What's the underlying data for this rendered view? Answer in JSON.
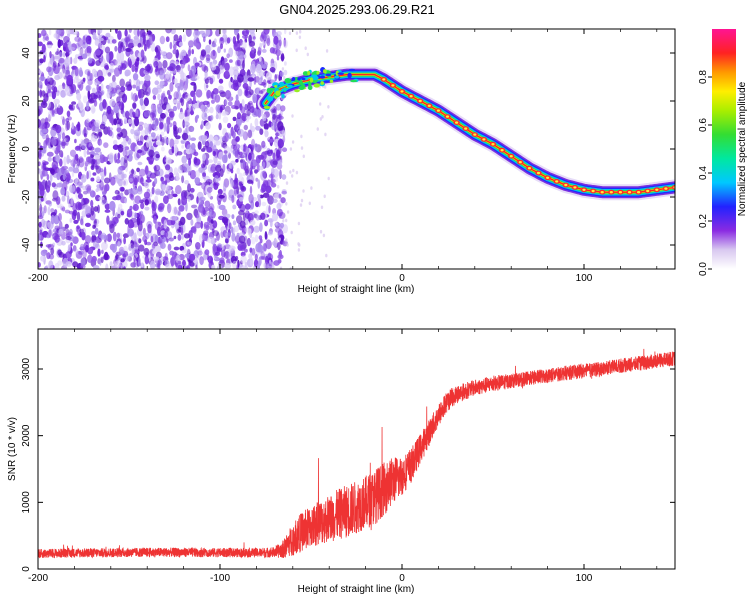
{
  "title": "GN04.2025.293.06.29.R21",
  "chart_data": [
    {
      "type": "heatmap",
      "xlabel": "Height of straight line (km)",
      "ylabel": "Frequency (Hz)",
      "xlim": [
        -200,
        150
      ],
      "ylim": [
        -50,
        50
      ],
      "x_ticks": [
        -200,
        -100,
        0,
        100
      ],
      "y_ticks": [
        -40,
        -20,
        0,
        20,
        40
      ],
      "colorbar": {
        "label": "Normalized spectral amplitude",
        "range": [
          0,
          1
        ],
        "ticks": [
          0.0,
          0.2,
          0.4,
          0.6,
          0.8
        ]
      },
      "noise_region": {
        "x_range": [
          -200,
          -70
        ],
        "y_range": [
          -50,
          50
        ]
      },
      "ridge": {
        "x": [
          -75,
          -70,
          -60,
          -50,
          -40,
          -30,
          -20,
          -15,
          -10,
          0,
          10,
          20,
          30,
          40,
          50,
          60,
          70,
          80,
          90,
          100,
          110,
          120,
          130,
          140,
          150
        ],
        "y": [
          19,
          24,
          27,
          29,
          30,
          31,
          31,
          31,
          29,
          24,
          20,
          16,
          11,
          6,
          2,
          -3,
          -8,
          -12,
          -15,
          -17,
          -18,
          -18,
          -18,
          -17,
          -16
        ]
      }
    },
    {
      "type": "line",
      "xlabel": "Height of straight line (km)",
      "ylabel": "SNR (10 * v/v)",
      "xlim": [
        -200,
        150
      ],
      "ylim": [
        0,
        3600
      ],
      "x_ticks": [
        -200,
        -100,
        0,
        100
      ],
      "y_ticks": [
        0,
        1000,
        2000,
        3000
      ],
      "series": [
        {
          "color": "#ee3333",
          "x": [
            -200,
            -180,
            -160,
            -140,
            -120,
            -100,
            -80,
            -70,
            -65,
            -60,
            -55,
            -50,
            -45,
            -40,
            -35,
            -30,
            -25,
            -20,
            -15,
            -10,
            -5,
            0,
            5,
            10,
            15,
            20,
            25,
            30,
            40,
            50,
            60,
            70,
            80,
            90,
            100,
            110,
            120,
            130,
            140,
            150
          ],
          "y": [
            230,
            240,
            245,
            250,
            250,
            245,
            245,
            250,
            300,
            450,
            560,
            630,
            700,
            760,
            820,
            870,
            930,
            1000,
            1080,
            1200,
            1330,
            1400,
            1550,
            1800,
            2050,
            2300,
            2520,
            2620,
            2720,
            2780,
            2820,
            2860,
            2900,
            2940,
            2970,
            3000,
            3050,
            3080,
            3120,
            3160
          ],
          "noise_amp": [
            70,
            70,
            70,
            70,
            70,
            70,
            70,
            80,
            140,
            250,
            300,
            320,
            340,
            360,
            380,
            400,
            400,
            400,
            420,
            400,
            360,
            300,
            260,
            230,
            200,
            180,
            160,
            140,
            120,
            120,
            110,
            110,
            110,
            110,
            110,
            110,
            110,
            110,
            110,
            110
          ]
        }
      ]
    }
  ]
}
